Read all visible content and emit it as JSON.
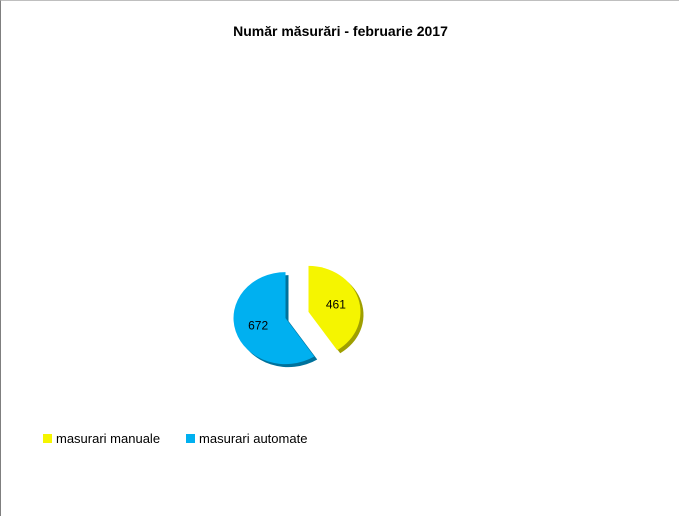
{
  "chart_data": {
    "type": "pie",
    "title": "Număr măsurări - februarie 2017",
    "categories": [
      "masurari manuale",
      "masurari automate"
    ],
    "values": [
      461,
      672
    ],
    "colors": [
      "#f5f500",
      "#00b0f0"
    ],
    "exploded": true,
    "legend_position": "bottom-left"
  }
}
